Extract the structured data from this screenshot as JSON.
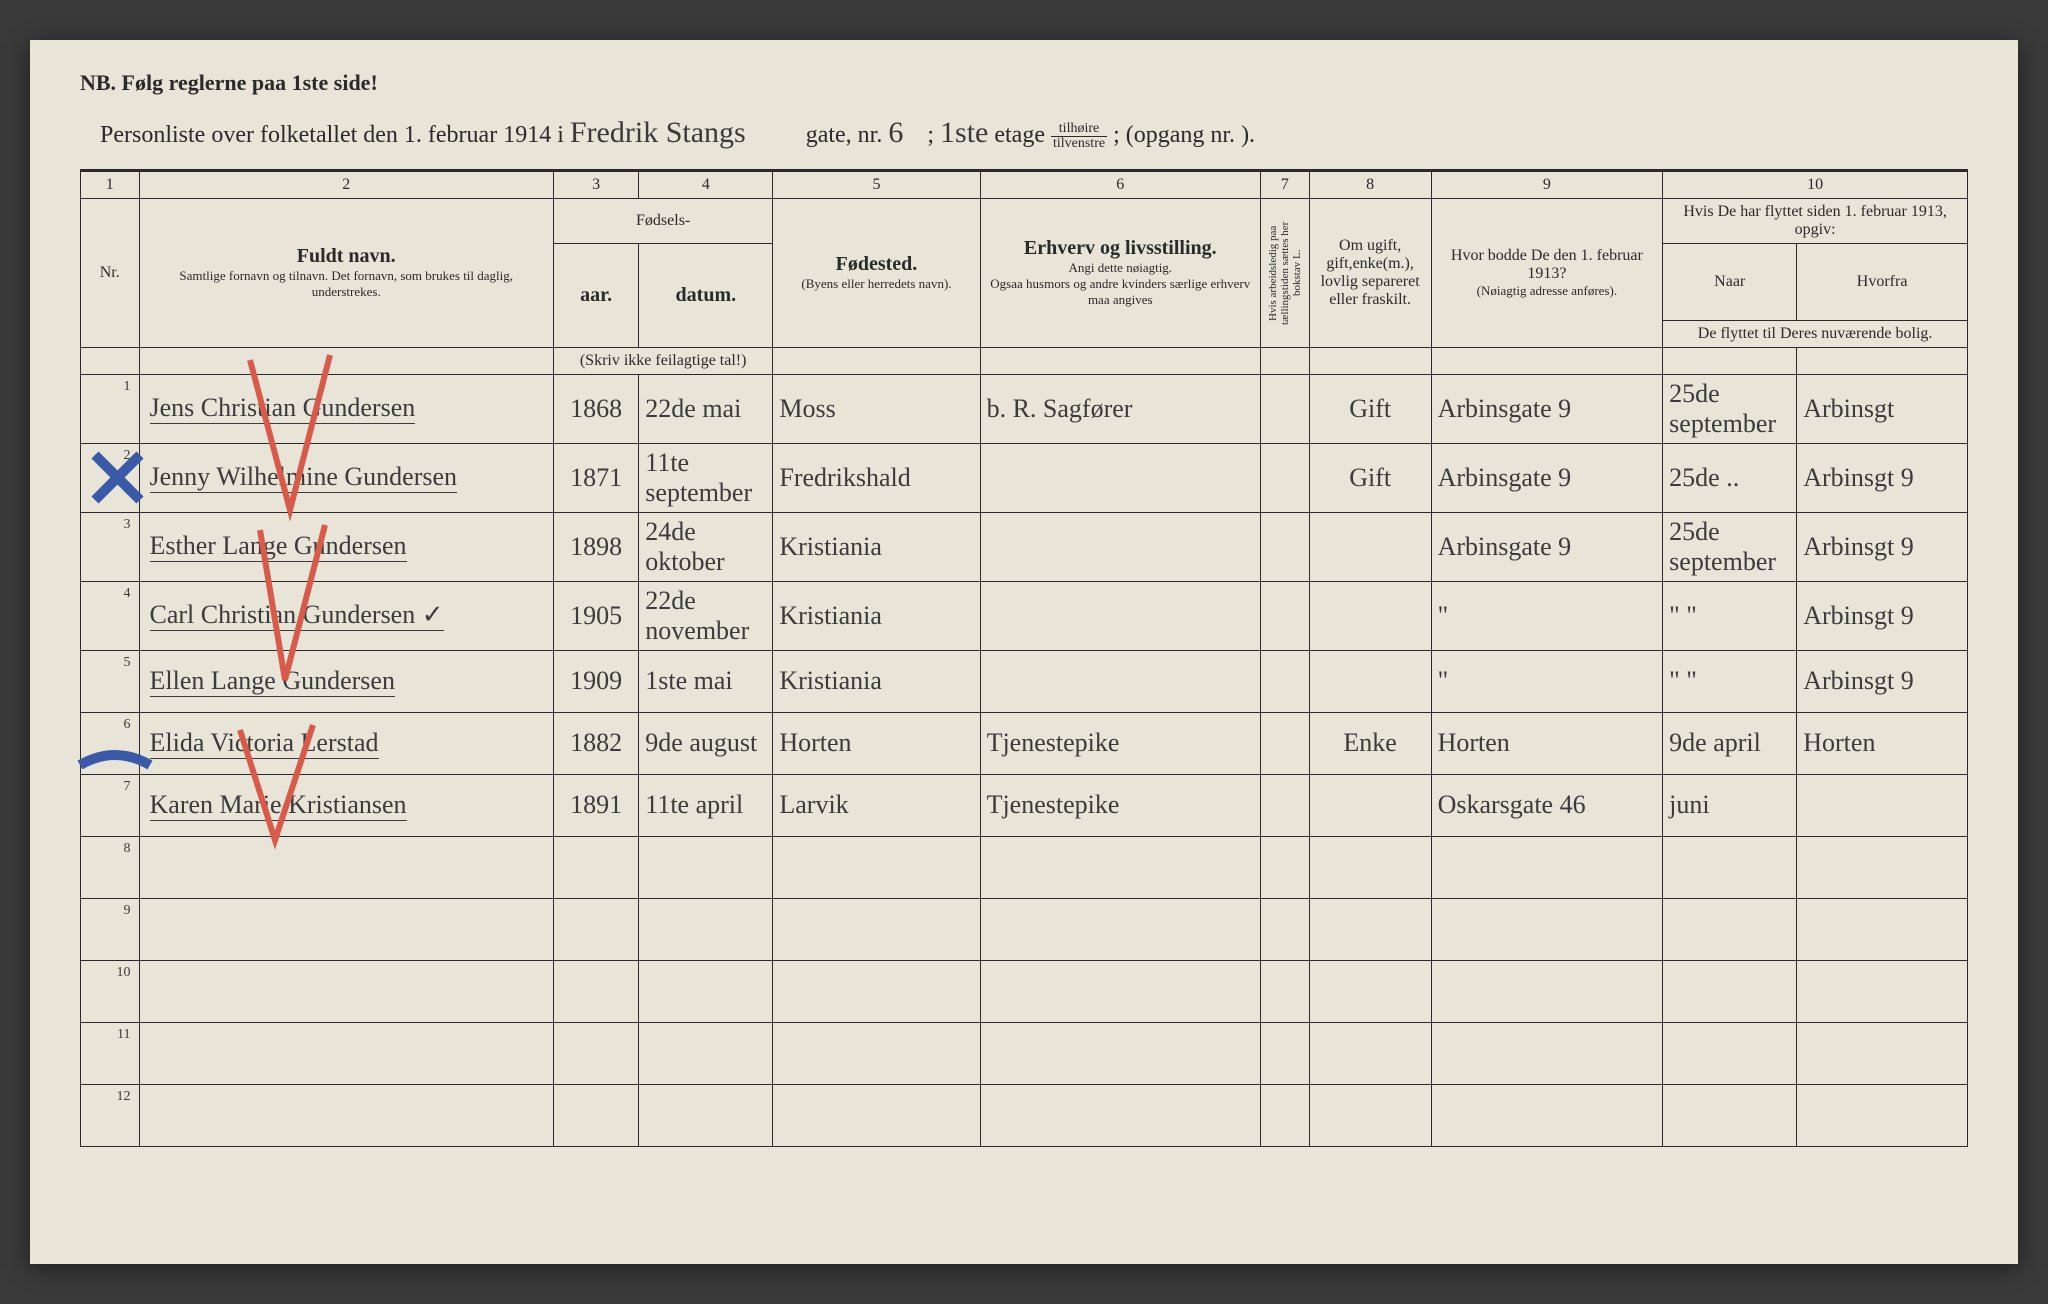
{
  "colors": {
    "page_bg": "#e8e4d8",
    "ink": "#2a2a2a",
    "script_ink": "#3b3b3b",
    "red_pencil": "#d85a4a",
    "blue_pencil": "#3a5aa8"
  },
  "nb": "NB.  Følg reglerne paa 1ste side!",
  "header": {
    "prefix": "Personliste over folketallet den 1. februar 1914 i",
    "street": "Fredrik Stangs",
    "gate_label": "gate, nr.",
    "gate_nr": "6",
    "semi": ";",
    "etage_nr": "1ste",
    "etage_label": "etage",
    "fraction_top": "tilhøire",
    "fraction_bot": "tilvenstre",
    "opgang_label": "; (opgang nr.",
    "opgang_nr": "",
    "close": ")."
  },
  "column_numbers": [
    "1",
    "2",
    "3",
    "4",
    "5",
    "6",
    "7",
    "8",
    "9",
    "10"
  ],
  "headers": {
    "nr": "Nr.",
    "fuldt_navn": "Fuldt navn.",
    "fuldt_sub": "Samtlige fornavn og tilnavn.  Det fornavn, som brukes til daglig, understrekes.",
    "fodsels": "Fødsels-",
    "aar": "aar.",
    "datum": "datum.",
    "aar_sub": "(Skriv ikke feilagtige tal!)",
    "fodested": "Fødested.",
    "fodested_sub": "(Byens eller herredets navn).",
    "erhverv": "Erhverv og livsstilling.",
    "erhverv_sub1": "Angi dette nøiagtig.",
    "erhverv_sub2": "Ogsaa husmors og andre kvinders særlige erhverv maa angives",
    "col7_rot": "Hvis arbeidsledig paa tællingstiden sættes her bokstav L.",
    "col8": "Om ugift, gift,enke(m.), lovlig separeret eller fraskilt.",
    "col9": "Hvor bodde De den 1. februar 1913?",
    "col9_sub": "(Nøiagtig adresse anføres).",
    "col10_top": "Hvis De har flyttet siden 1. februar 1913, opgiv:",
    "col10_naar": "Naar",
    "col10_hvorfra": "Hvorfra",
    "col10_sub": "De flyttet til Deres nuværende bolig."
  },
  "rows": [
    {
      "nr": "1",
      "name": "Jens Christian Gundersen",
      "aar": "1868",
      "datum": "22de mai",
      "fodested": "Moss",
      "erhverv": "b. R. Sagfører",
      "col7": "",
      "status": "Gift",
      "col9": "Arbinsgate 9",
      "naar": "25de september",
      "hvorfra": "Arbinsgt"
    },
    {
      "nr": "2",
      "name": "Jenny Wilhelmine Gundersen",
      "aar": "1871",
      "datum": "11te september",
      "fodested": "Fredrikshald",
      "erhverv": "",
      "col7": "",
      "status": "Gift",
      "col9": "Arbinsgate 9",
      "naar": "25de  ..",
      "hvorfra": "Arbinsgt 9"
    },
    {
      "nr": "3",
      "name": "Esther Lange Gundersen",
      "aar": "1898",
      "datum": "24de oktober",
      "fodested": "Kristiania",
      "erhverv": "",
      "col7": "",
      "status": "",
      "col9": "Arbinsgate 9",
      "naar": "25de september",
      "hvorfra": "Arbinsgt 9"
    },
    {
      "nr": "4",
      "name": "Carl Christian Gundersen   ✓",
      "aar": "1905",
      "datum": "22de november",
      "fodested": "Kristiania",
      "erhverv": "",
      "col7": "",
      "status": "",
      "col9": "\"",
      "naar": "\"   \"",
      "hvorfra": "Arbinsgt 9"
    },
    {
      "nr": "5",
      "name": "Ellen Lange Gundersen",
      "aar": "1909",
      "datum": "1ste mai",
      "fodested": "Kristiania",
      "erhverv": "",
      "col7": "",
      "status": "",
      "col9": "\"",
      "naar": "\"   \"",
      "hvorfra": "Arbinsgt 9"
    },
    {
      "nr": "6",
      "name": "Elida Victoria Lerstad",
      "aar": "1882",
      "datum": "9de august",
      "fodested": "Horten",
      "erhverv": "Tjenestepike",
      "col7": "",
      "status": "Enke",
      "col9": "Horten",
      "naar": "9de april",
      "hvorfra": "Horten"
    },
    {
      "nr": "7",
      "name": "Karen Marie Kristiansen",
      "aar": "1891",
      "datum": "11te april",
      "fodested": "Larvik",
      "erhverv": "Tjenestepike",
      "col7": "",
      "status": "",
      "col9": "Oskarsgate 46",
      "naar": "juni",
      "hvorfra": ""
    },
    {
      "nr": "8",
      "name": "",
      "aar": "",
      "datum": "",
      "fodested": "",
      "erhverv": "",
      "col7": "",
      "status": "",
      "col9": "",
      "naar": "",
      "hvorfra": ""
    },
    {
      "nr": "9",
      "name": "",
      "aar": "",
      "datum": "",
      "fodested": "",
      "erhverv": "",
      "col7": "",
      "status": "",
      "col9": "",
      "naar": "",
      "hvorfra": ""
    },
    {
      "nr": "10",
      "name": "",
      "aar": "",
      "datum": "",
      "fodested": "",
      "erhverv": "",
      "col7": "",
      "status": "",
      "col9": "",
      "naar": "",
      "hvorfra": ""
    },
    {
      "nr": "11",
      "name": "",
      "aar": "",
      "datum": "",
      "fodested": "",
      "erhverv": "",
      "col7": "",
      "status": "",
      "col9": "",
      "naar": "",
      "hvorfra": ""
    },
    {
      "nr": "12",
      "name": "",
      "aar": "",
      "datum": "",
      "fodested": "",
      "erhverv": "",
      "col7": "",
      "status": "",
      "col9": "",
      "naar": "",
      "hvorfra": ""
    }
  ],
  "marks": {
    "red_checks_on_rows": [
      1,
      2,
      3,
      4,
      5,
      7
    ],
    "blue_marks_on_rows": [
      3,
      7
    ]
  }
}
